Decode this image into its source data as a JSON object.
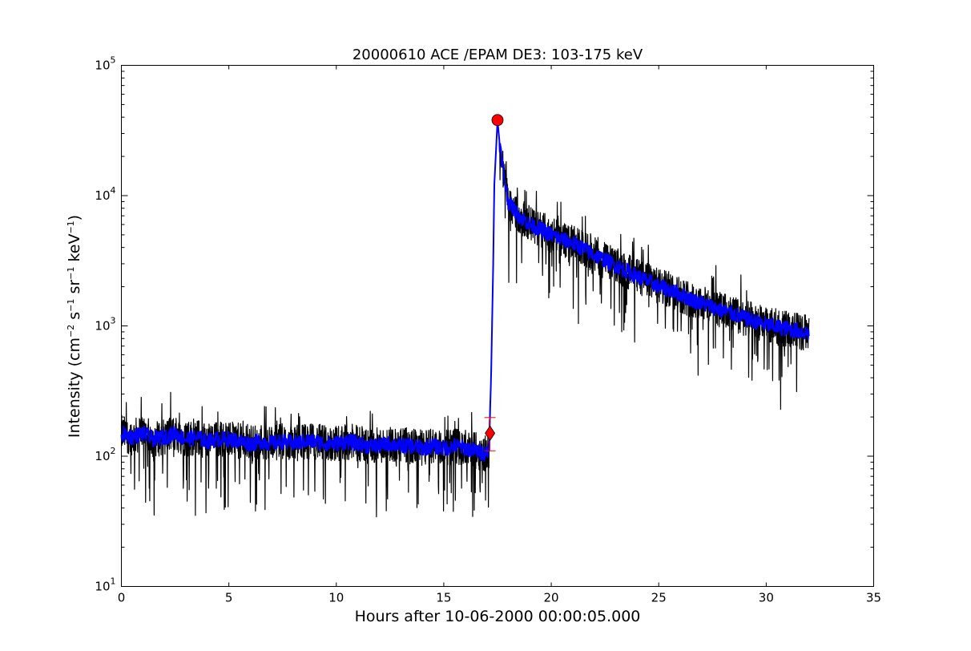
{
  "chart_data": {
    "type": "line",
    "title": "20000610 ACE /EPAM DE3: 103-175 keV",
    "xlabel": "Hours after 10-06-2000 00:00:05.000",
    "ylabel": {
      "prefix": "Intensity (cm",
      "sup1": "−2",
      "mid1": "s",
      "sup2": "−1",
      "mid2": "sr",
      "sup3": "−1",
      "mid3": "keV",
      "sup4": "−1",
      "suffix": ")"
    },
    "xlim": [
      0,
      35
    ],
    "ylim": [
      10,
      100000
    ],
    "yscale": "log",
    "grid": false,
    "x_ticks": [
      0,
      5,
      10,
      15,
      20,
      25,
      30,
      35
    ],
    "x_tick_labels": [
      "0",
      "5",
      "10",
      "15",
      "20",
      "25",
      "30",
      "35"
    ],
    "y_tick_labels": [
      {
        "base": "10",
        "exp": "1"
      },
      {
        "base": "10",
        "exp": "2"
      },
      {
        "base": "10",
        "exp": "3"
      },
      {
        "base": "10",
        "exp": "4"
      },
      {
        "base": "10",
        "exp": "5"
      }
    ],
    "series": [
      {
        "role": "raw",
        "color": "#000000",
        "points": [
          [
            0.0,
            150
          ],
          [
            0.5,
            140
          ],
          [
            1.0,
            150
          ],
          [
            1.5,
            135
          ],
          [
            2.0,
            140
          ],
          [
            2.5,
            150
          ],
          [
            3.0,
            135
          ],
          [
            3.5,
            140
          ],
          [
            4.0,
            130
          ],
          [
            4.5,
            135
          ],
          [
            5.0,
            135
          ],
          [
            5.5,
            130
          ],
          [
            6.0,
            125
          ],
          [
            6.5,
            130
          ],
          [
            7.0,
            125
          ],
          [
            7.5,
            130
          ],
          [
            8.0,
            125
          ],
          [
            8.5,
            130
          ],
          [
            9.0,
            130
          ],
          [
            9.5,
            125
          ],
          [
            10.0,
            125
          ],
          [
            10.5,
            130
          ],
          [
            11.0,
            125
          ],
          [
            11.5,
            120
          ],
          [
            12.0,
            120
          ],
          [
            12.5,
            125
          ],
          [
            13.0,
            120
          ],
          [
            13.5,
            120
          ],
          [
            14.0,
            115
          ],
          [
            14.5,
            120
          ],
          [
            15.0,
            115
          ],
          [
            15.5,
            120
          ],
          [
            16.0,
            115
          ],
          [
            16.5,
            110
          ],
          [
            16.9,
            105
          ],
          [
            17.1,
            110
          ],
          [
            17.2,
            400
          ],
          [
            17.3,
            3000
          ],
          [
            17.35,
            12000
          ],
          [
            17.5,
            38000
          ],
          [
            17.6,
            25000
          ],
          [
            17.8,
            14000
          ],
          [
            18.0,
            9000
          ],
          [
            18.5,
            7000
          ],
          [
            19.0,
            6000
          ],
          [
            19.5,
            5500
          ],
          [
            20.0,
            5000
          ],
          [
            20.5,
            4600
          ],
          [
            21.0,
            4300
          ],
          [
            21.5,
            3900
          ],
          [
            22.0,
            3500
          ],
          [
            22.5,
            3200
          ],
          [
            23.0,
            2900
          ],
          [
            23.5,
            2650
          ],
          [
            24.0,
            2400
          ],
          [
            24.5,
            2200
          ],
          [
            25.0,
            2000
          ],
          [
            25.5,
            1900
          ],
          [
            26.0,
            1750
          ],
          [
            26.5,
            1600
          ],
          [
            27.0,
            1500
          ],
          [
            27.5,
            1400
          ],
          [
            28.0,
            1300
          ],
          [
            28.5,
            1230
          ],
          [
            29.0,
            1150
          ],
          [
            29.5,
            1080
          ],
          [
            30.0,
            1020
          ],
          [
            30.5,
            980
          ],
          [
            31.0,
            950
          ],
          [
            31.5,
            910
          ],
          [
            32.0,
            880
          ]
        ]
      },
      {
        "role": "smoothed",
        "color": "#0000ff",
        "points": [
          [
            0.0,
            150
          ],
          [
            0.5,
            140
          ],
          [
            1.0,
            150
          ],
          [
            1.5,
            135
          ],
          [
            2.0,
            140
          ],
          [
            2.5,
            150
          ],
          [
            3.0,
            135
          ],
          [
            3.5,
            140
          ],
          [
            4.0,
            130
          ],
          [
            4.5,
            135
          ],
          [
            5.0,
            135
          ],
          [
            5.5,
            130
          ],
          [
            6.0,
            125
          ],
          [
            6.5,
            130
          ],
          [
            7.0,
            125
          ],
          [
            7.5,
            130
          ],
          [
            8.0,
            125
          ],
          [
            8.5,
            130
          ],
          [
            9.0,
            130
          ],
          [
            9.5,
            125
          ],
          [
            10.0,
            125
          ],
          [
            10.5,
            130
          ],
          [
            11.0,
            125
          ],
          [
            11.5,
            120
          ],
          [
            12.0,
            120
          ],
          [
            12.5,
            125
          ],
          [
            13.0,
            120
          ],
          [
            13.5,
            120
          ],
          [
            14.0,
            115
          ],
          [
            14.5,
            120
          ],
          [
            15.0,
            115
          ],
          [
            15.5,
            120
          ],
          [
            16.0,
            115
          ],
          [
            16.5,
            110
          ],
          [
            16.9,
            105
          ],
          [
            17.1,
            110
          ],
          [
            17.2,
            400
          ],
          [
            17.3,
            3000
          ],
          [
            17.35,
            12000
          ],
          [
            17.5,
            38000
          ],
          [
            17.6,
            25000
          ],
          [
            17.8,
            14000
          ],
          [
            18.0,
            9000
          ],
          [
            18.5,
            7000
          ],
          [
            19.0,
            6000
          ],
          [
            19.5,
            5500
          ],
          [
            20.0,
            5000
          ],
          [
            20.5,
            4600
          ],
          [
            21.0,
            4300
          ],
          [
            21.5,
            3900
          ],
          [
            22.0,
            3500
          ],
          [
            22.5,
            3200
          ],
          [
            23.0,
            2900
          ],
          [
            23.5,
            2650
          ],
          [
            24.0,
            2400
          ],
          [
            24.5,
            2200
          ],
          [
            25.0,
            2000
          ],
          [
            25.5,
            1900
          ],
          [
            26.0,
            1750
          ],
          [
            26.5,
            1600
          ],
          [
            27.0,
            1500
          ],
          [
            27.5,
            1400
          ],
          [
            28.0,
            1300
          ],
          [
            28.5,
            1230
          ],
          [
            29.0,
            1150
          ],
          [
            29.5,
            1080
          ],
          [
            30.0,
            1020
          ],
          [
            30.5,
            980
          ],
          [
            31.0,
            950
          ],
          [
            31.5,
            910
          ],
          [
            32.0,
            880
          ]
        ]
      }
    ],
    "markers": {
      "peak": {
        "x": 17.5,
        "y": 38000,
        "shape": "circle",
        "color": "#ff0000"
      },
      "onset": {
        "x": 17.15,
        "y": 150,
        "shape": "diamond",
        "color": "#ff0000",
        "error_low": 110,
        "error_high": 198
      }
    }
  }
}
